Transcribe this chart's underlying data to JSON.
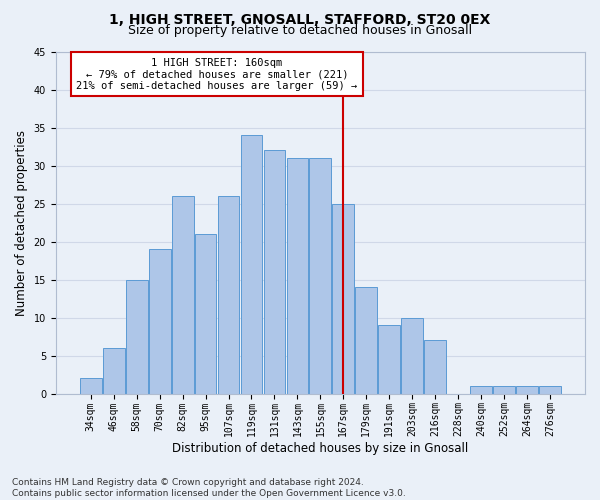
{
  "title": "1, HIGH STREET, GNOSALL, STAFFORD, ST20 0EX",
  "subtitle": "Size of property relative to detached houses in Gnosall",
  "xlabel": "Distribution of detached houses by size in Gnosall",
  "ylabel": "Number of detached properties",
  "categories": [
    "34sqm",
    "46sqm",
    "58sqm",
    "70sqm",
    "82sqm",
    "95sqm",
    "107sqm",
    "119sqm",
    "131sqm",
    "143sqm",
    "155sqm",
    "167sqm",
    "179sqm",
    "191sqm",
    "203sqm",
    "216sqm",
    "228sqm",
    "240sqm",
    "252sqm",
    "264sqm",
    "276sqm"
  ],
  "values": [
    2,
    6,
    15,
    19,
    26,
    21,
    26,
    34,
    32,
    31,
    31,
    25,
    14,
    9,
    10,
    7,
    0,
    1,
    1,
    1,
    1
  ],
  "bar_color": "#aec6e8",
  "bar_edge_color": "#5b9bd5",
  "vline_x": 11.0,
  "marker_label": "1 HIGH STREET: 160sqm",
  "annotation_line1": "← 79% of detached houses are smaller (221)",
  "annotation_line2": "21% of semi-detached houses are larger (59) →",
  "annotation_box_color": "#ffffff",
  "annotation_box_edge": "#cc0000",
  "vline_color": "#cc0000",
  "ylim": [
    0,
    45
  ],
  "yticks": [
    0,
    5,
    10,
    15,
    20,
    25,
    30,
    35,
    40,
    45
  ],
  "grid_color": "#d0d8e8",
  "bg_color": "#eaf0f8",
  "footer": "Contains HM Land Registry data © Crown copyright and database right 2024.\nContains public sector information licensed under the Open Government Licence v3.0.",
  "title_fontsize": 10,
  "subtitle_fontsize": 9,
  "axis_label_fontsize": 8.5,
  "tick_fontsize": 7,
  "footer_fontsize": 6.5,
  "annot_fontsize": 7.5
}
